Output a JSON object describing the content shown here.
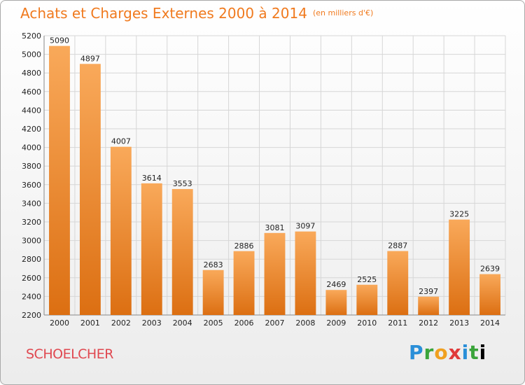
{
  "page": {
    "title": "Achats et Charges Externes 2000 à 2014",
    "unit": "(en milliers d'€)",
    "location": "SCHOELCHER",
    "logo": [
      "P",
      "r",
      "o",
      "x",
      "i",
      "t",
      "i"
    ]
  },
  "chart_data": {
    "type": "bar",
    "title": "Achats et Charges Externes 2000 à 2014",
    "subtitle": "(en milliers d'€)",
    "xlabel": "",
    "ylabel": "",
    "categories": [
      "2000",
      "2001",
      "2002",
      "2003",
      "2004",
      "2005",
      "2006",
      "2007",
      "2008",
      "2009",
      "2010",
      "2011",
      "2012",
      "2013",
      "2014"
    ],
    "values": [
      5090,
      4897,
      4007,
      3614,
      3553,
      2683,
      2886,
      3081,
      3097,
      2469,
      2525,
      2887,
      2397,
      3225,
      2639
    ],
    "ylim": [
      2200,
      5200
    ],
    "yticks": [
      2200,
      2400,
      2600,
      2800,
      3000,
      3200,
      3400,
      3600,
      3800,
      4000,
      4200,
      4400,
      4600,
      4800,
      5000,
      5200
    ],
    "grid": true,
    "legend": "none",
    "colors": {
      "bar_top": "#f9a95a",
      "bar_bottom": "#dc6f12",
      "title": "#f07a1e",
      "location": "#e04850"
    }
  }
}
